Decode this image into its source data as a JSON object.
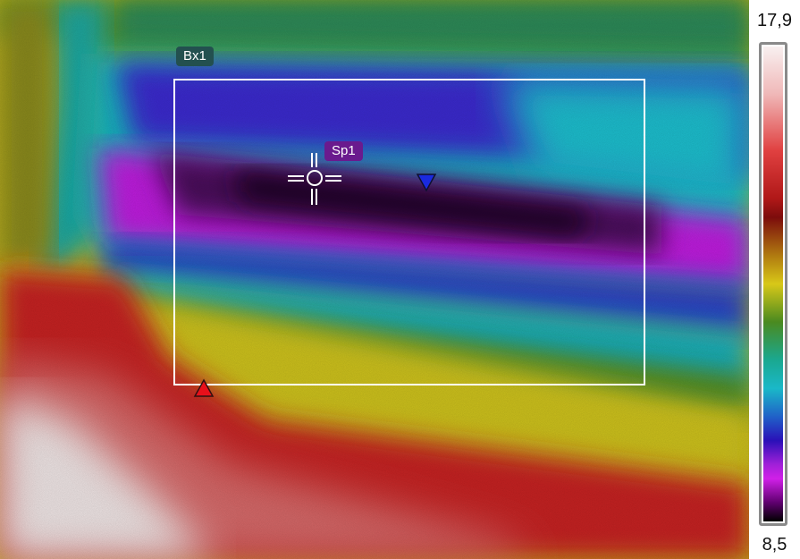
{
  "measurements": {
    "box_label": "Bx1",
    "spot_label": "Sp1"
  },
  "scale": {
    "max": "17,9",
    "min": "8,5"
  },
  "colors": {
    "hot_marker": "#e8101a",
    "cold_marker": "#1a2ae0",
    "overlay_line": "#ffffff"
  },
  "icons": {
    "spot": "crosshair-icon",
    "hot": "hot-spot-triangle-icon",
    "cold": "cold-spot-triangle-icon"
  }
}
